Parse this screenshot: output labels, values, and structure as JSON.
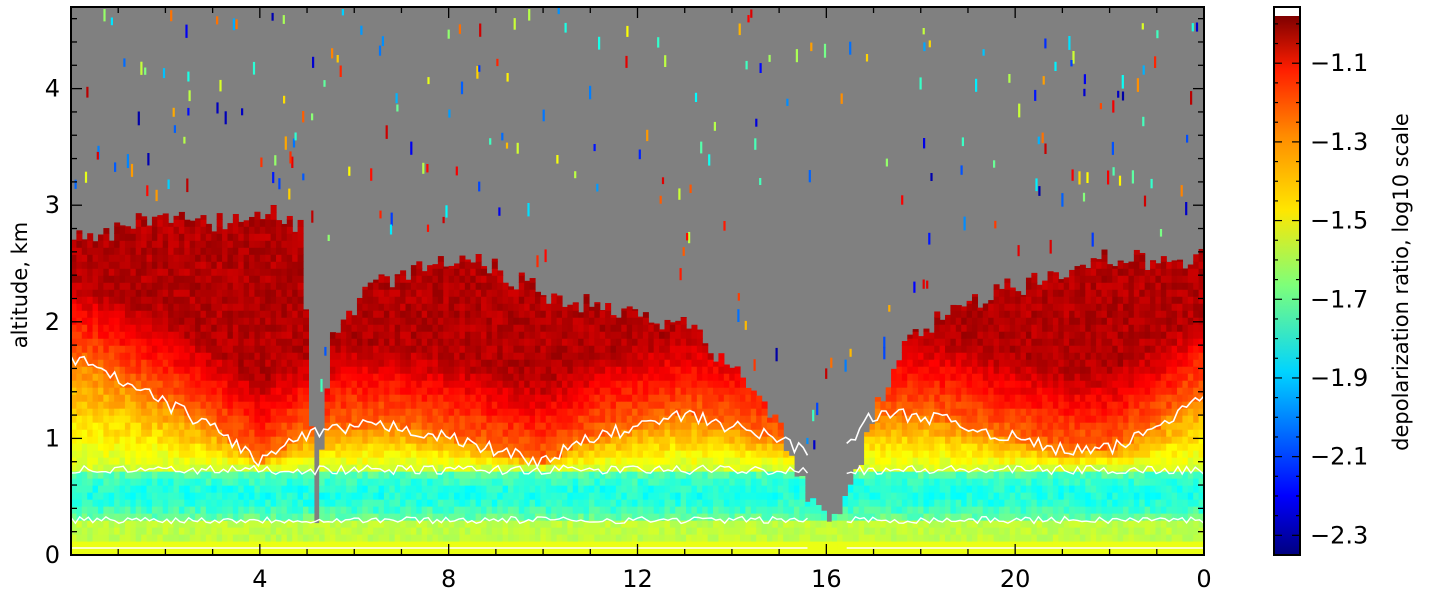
{
  "chart_data": {
    "type": "heatmap",
    "title": "",
    "xlabel": "",
    "ylabel": "altitude, km",
    "colorbar_label": "depolarization ratio, log10 scale",
    "x_ticks": [
      "4",
      "8",
      "12",
      "16",
      "20",
      "0"
    ],
    "x_tick_values": [
      4,
      8,
      12,
      16,
      20,
      24
    ],
    "xlim": [
      0,
      24
    ],
    "y_ticks": [
      "0",
      "1",
      "2",
      "3",
      "4"
    ],
    "y_tick_values": [
      0,
      1,
      2,
      3,
      4
    ],
    "ylim": [
      0,
      4.7
    ],
    "colorbar_ticks": [
      "−1.1",
      "−1.3",
      "−1.5",
      "−1.7",
      "−1.9",
      "−2.1",
      "−2.3"
    ],
    "colorbar_tick_values": [
      -1.1,
      -1.3,
      -1.5,
      -1.7,
      -1.9,
      -2.1,
      -2.3
    ],
    "color_range": [
      -2.35,
      -0.98
    ],
    "colormap": "jet",
    "background_color": "#808080",
    "contour_color": "#ffffff",
    "layer_top_km": {
      "hours": [
        0,
        0.5,
        1,
        1.5,
        2,
        2.5,
        3,
        3.5,
        4,
        4.5,
        4.9,
        5.2,
        5.5,
        6,
        6.5,
        7,
        7.5,
        8,
        8.5,
        9,
        9.5,
        10,
        10.5,
        11,
        11.5,
        12,
        12.5,
        13,
        13.5,
        14,
        14.5,
        15,
        15.5,
        16,
        16.5,
        17,
        17.5,
        18,
        18.5,
        19,
        19.5,
        20,
        20.5,
        21,
        21.5,
        22,
        22.5,
        23,
        23.5,
        24
      ],
      "values": [
        2.8,
        2.75,
        2.8,
        2.85,
        2.9,
        2.85,
        2.85,
        2.9,
        2.95,
        2.9,
        2.8,
        0.2,
        1.9,
        2.1,
        2.35,
        2.4,
        2.45,
        2.5,
        2.55,
        2.45,
        2.35,
        2.25,
        2.2,
        2.15,
        2.1,
        2.1,
        2.0,
        1.95,
        1.8,
        1.6,
        1.35,
        1.1,
        0.6,
        0.3,
        0.5,
        1.2,
        1.7,
        1.95,
        2.05,
        2.15,
        2.25,
        2.3,
        2.35,
        2.4,
        2.5,
        2.55,
        2.55,
        2.5,
        2.5,
        2.65
      ]
    },
    "red_core_km": {
      "hours": [
        0,
        1,
        2,
        3,
        4,
        4.8,
        6,
        7,
        8,
        9,
        10,
        11,
        12,
        13,
        14,
        15,
        16,
        17,
        18,
        19,
        20,
        21,
        22,
        23,
        24
      ],
      "values": [
        1.7,
        1.5,
        1.3,
        1.1,
        0.8,
        1.0,
        1.1,
        1.1,
        1.0,
        0.9,
        0.8,
        1.0,
        1.1,
        1.2,
        1.1,
        1.0,
        0.8,
        1.2,
        1.2,
        1.1,
        1.0,
        0.9,
        0.9,
        1.1,
        1.4
      ]
    },
    "green_band_top_km": 0.75
  }
}
